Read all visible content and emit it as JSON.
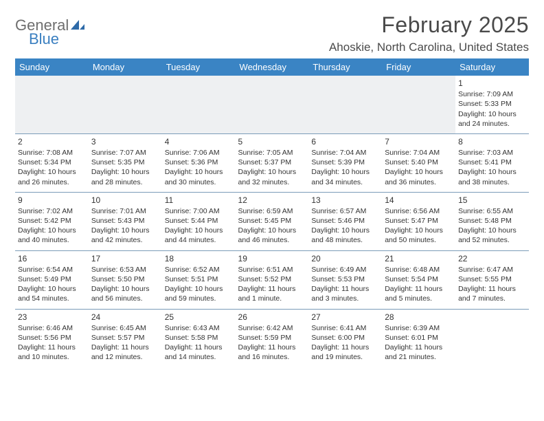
{
  "logo": {
    "part1": "General",
    "part2": "Blue"
  },
  "title": "February 2025",
  "location": "Ahoskie, North Carolina, United States",
  "colors": {
    "header_bg": "#3a84c4",
    "header_fg": "#ffffff",
    "rule": "#7a9bb8",
    "logo_gray": "#6e6e6e",
    "logo_blue": "#3a7fc0",
    "text": "#333333",
    "firstrow_bg": "#eef0f2"
  },
  "weekdays": [
    "Sunday",
    "Monday",
    "Tuesday",
    "Wednesday",
    "Thursday",
    "Friday",
    "Saturday"
  ],
  "weeks": [
    [
      null,
      null,
      null,
      null,
      null,
      null,
      {
        "n": "1",
        "sr": "Sunrise: 7:09 AM",
        "ss": "Sunset: 5:33 PM",
        "dl": "Daylight: 10 hours and 24 minutes."
      }
    ],
    [
      {
        "n": "2",
        "sr": "Sunrise: 7:08 AM",
        "ss": "Sunset: 5:34 PM",
        "dl": "Daylight: 10 hours and 26 minutes."
      },
      {
        "n": "3",
        "sr": "Sunrise: 7:07 AM",
        "ss": "Sunset: 5:35 PM",
        "dl": "Daylight: 10 hours and 28 minutes."
      },
      {
        "n": "4",
        "sr": "Sunrise: 7:06 AM",
        "ss": "Sunset: 5:36 PM",
        "dl": "Daylight: 10 hours and 30 minutes."
      },
      {
        "n": "5",
        "sr": "Sunrise: 7:05 AM",
        "ss": "Sunset: 5:37 PM",
        "dl": "Daylight: 10 hours and 32 minutes."
      },
      {
        "n": "6",
        "sr": "Sunrise: 7:04 AM",
        "ss": "Sunset: 5:39 PM",
        "dl": "Daylight: 10 hours and 34 minutes."
      },
      {
        "n": "7",
        "sr": "Sunrise: 7:04 AM",
        "ss": "Sunset: 5:40 PM",
        "dl": "Daylight: 10 hours and 36 minutes."
      },
      {
        "n": "8",
        "sr": "Sunrise: 7:03 AM",
        "ss": "Sunset: 5:41 PM",
        "dl": "Daylight: 10 hours and 38 minutes."
      }
    ],
    [
      {
        "n": "9",
        "sr": "Sunrise: 7:02 AM",
        "ss": "Sunset: 5:42 PM",
        "dl": "Daylight: 10 hours and 40 minutes."
      },
      {
        "n": "10",
        "sr": "Sunrise: 7:01 AM",
        "ss": "Sunset: 5:43 PM",
        "dl": "Daylight: 10 hours and 42 minutes."
      },
      {
        "n": "11",
        "sr": "Sunrise: 7:00 AM",
        "ss": "Sunset: 5:44 PM",
        "dl": "Daylight: 10 hours and 44 minutes."
      },
      {
        "n": "12",
        "sr": "Sunrise: 6:59 AM",
        "ss": "Sunset: 5:45 PM",
        "dl": "Daylight: 10 hours and 46 minutes."
      },
      {
        "n": "13",
        "sr": "Sunrise: 6:57 AM",
        "ss": "Sunset: 5:46 PM",
        "dl": "Daylight: 10 hours and 48 minutes."
      },
      {
        "n": "14",
        "sr": "Sunrise: 6:56 AM",
        "ss": "Sunset: 5:47 PM",
        "dl": "Daylight: 10 hours and 50 minutes."
      },
      {
        "n": "15",
        "sr": "Sunrise: 6:55 AM",
        "ss": "Sunset: 5:48 PM",
        "dl": "Daylight: 10 hours and 52 minutes."
      }
    ],
    [
      {
        "n": "16",
        "sr": "Sunrise: 6:54 AM",
        "ss": "Sunset: 5:49 PM",
        "dl": "Daylight: 10 hours and 54 minutes."
      },
      {
        "n": "17",
        "sr": "Sunrise: 6:53 AM",
        "ss": "Sunset: 5:50 PM",
        "dl": "Daylight: 10 hours and 56 minutes."
      },
      {
        "n": "18",
        "sr": "Sunrise: 6:52 AM",
        "ss": "Sunset: 5:51 PM",
        "dl": "Daylight: 10 hours and 59 minutes."
      },
      {
        "n": "19",
        "sr": "Sunrise: 6:51 AM",
        "ss": "Sunset: 5:52 PM",
        "dl": "Daylight: 11 hours and 1 minute."
      },
      {
        "n": "20",
        "sr": "Sunrise: 6:49 AM",
        "ss": "Sunset: 5:53 PM",
        "dl": "Daylight: 11 hours and 3 minutes."
      },
      {
        "n": "21",
        "sr": "Sunrise: 6:48 AM",
        "ss": "Sunset: 5:54 PM",
        "dl": "Daylight: 11 hours and 5 minutes."
      },
      {
        "n": "22",
        "sr": "Sunrise: 6:47 AM",
        "ss": "Sunset: 5:55 PM",
        "dl": "Daylight: 11 hours and 7 minutes."
      }
    ],
    [
      {
        "n": "23",
        "sr": "Sunrise: 6:46 AM",
        "ss": "Sunset: 5:56 PM",
        "dl": "Daylight: 11 hours and 10 minutes."
      },
      {
        "n": "24",
        "sr": "Sunrise: 6:45 AM",
        "ss": "Sunset: 5:57 PM",
        "dl": "Daylight: 11 hours and 12 minutes."
      },
      {
        "n": "25",
        "sr": "Sunrise: 6:43 AM",
        "ss": "Sunset: 5:58 PM",
        "dl": "Daylight: 11 hours and 14 minutes."
      },
      {
        "n": "26",
        "sr": "Sunrise: 6:42 AM",
        "ss": "Sunset: 5:59 PM",
        "dl": "Daylight: 11 hours and 16 minutes."
      },
      {
        "n": "27",
        "sr": "Sunrise: 6:41 AM",
        "ss": "Sunset: 6:00 PM",
        "dl": "Daylight: 11 hours and 19 minutes."
      },
      {
        "n": "28",
        "sr": "Sunrise: 6:39 AM",
        "ss": "Sunset: 6:01 PM",
        "dl": "Daylight: 11 hours and 21 minutes."
      },
      null
    ]
  ]
}
